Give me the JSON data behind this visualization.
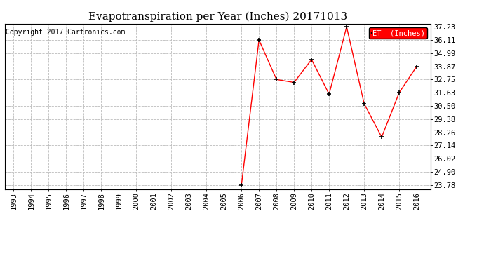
{
  "title": "Evapotranspiration per Year (Inches) 20171013",
  "copyright": "Copyright 2017 Cartronics.com",
  "legend_label": "ET  (Inches)",
  "years": [
    1993,
    1994,
    1995,
    1996,
    1997,
    1998,
    1999,
    2000,
    2001,
    2002,
    2003,
    2004,
    2005,
    2006,
    2007,
    2008,
    2009,
    2010,
    2011,
    2012,
    2013,
    2014,
    2015,
    2016
  ],
  "values": [
    null,
    null,
    null,
    null,
    null,
    null,
    null,
    null,
    null,
    null,
    null,
    null,
    null,
    23.78,
    36.11,
    32.75,
    32.5,
    34.45,
    31.5,
    37.23,
    30.69,
    27.85,
    31.63,
    33.87
  ],
  "yticks": [
    23.78,
    24.9,
    26.02,
    27.14,
    28.26,
    29.38,
    30.5,
    31.63,
    32.75,
    33.87,
    34.99,
    36.11,
    37.23
  ],
  "line_color": "#ff0000",
  "marker_color": "#000000",
  "grid_color": "#bbbbbb",
  "background_color": "#ffffff",
  "legend_bg": "#ff0000",
  "legend_text_color": "#ffffff",
  "title_fontsize": 11,
  "tick_fontsize": 7.5,
  "copyright_fontsize": 7,
  "ylim_min": 23.4,
  "ylim_max": 37.5
}
